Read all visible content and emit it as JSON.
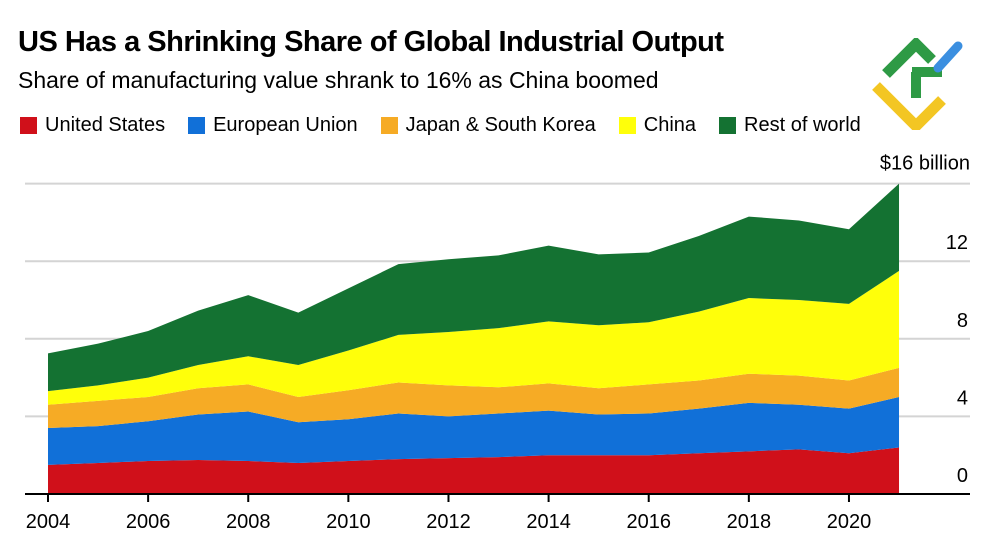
{
  "chart_data": {
    "type": "area",
    "stacked": true,
    "title": "US Has a Shrinking Share of Global Industrial Output",
    "subtitle": "Share of manufacturing value shrank to 16% as China boomed",
    "unit_label": "$16 billion",
    "x": [
      2004,
      2005,
      2006,
      2007,
      2008,
      2009,
      2010,
      2011,
      2012,
      2013,
      2014,
      2015,
      2016,
      2017,
      2018,
      2019,
      2020,
      2021
    ],
    "x_ticks": [
      "2004",
      "2006",
      "2008",
      "2010",
      "2012",
      "2014",
      "2016",
      "2018",
      "2020"
    ],
    "y_ticks": [
      "0",
      "4",
      "8",
      "12"
    ],
    "ylim": [
      0,
      16
    ],
    "grid": true,
    "y_axis_side": "right",
    "legend_placement": "top",
    "series": [
      {
        "name": "United States",
        "color": "#d0101a",
        "values": [
          1.5,
          1.6,
          1.7,
          1.75,
          1.7,
          1.6,
          1.7,
          1.8,
          1.85,
          1.9,
          2.0,
          2.0,
          2.0,
          2.1,
          2.2,
          2.3,
          2.1,
          2.4
        ]
      },
      {
        "name": "European Union",
        "color": "#1170d8",
        "values": [
          1.9,
          1.9,
          2.05,
          2.35,
          2.55,
          2.1,
          2.15,
          2.35,
          2.15,
          2.25,
          2.3,
          2.1,
          2.15,
          2.3,
          2.5,
          2.3,
          2.3,
          2.6
        ]
      },
      {
        "name": "Japan & South Korea",
        "color": "#f6ab25",
        "values": [
          1.2,
          1.3,
          1.25,
          1.35,
          1.4,
          1.3,
          1.5,
          1.6,
          1.6,
          1.35,
          1.4,
          1.35,
          1.5,
          1.45,
          1.5,
          1.5,
          1.45,
          1.5
        ]
      },
      {
        "name": "China",
        "color": "#ffff0a",
        "values": [
          0.7,
          0.8,
          1.0,
          1.2,
          1.45,
          1.65,
          2.05,
          2.45,
          2.75,
          3.05,
          3.2,
          3.25,
          3.2,
          3.55,
          3.9,
          3.9,
          3.95,
          5.0
        ]
      },
      {
        "name": "Rest of world",
        "color": "#147232",
        "values": [
          1.95,
          2.15,
          2.4,
          2.8,
          3.15,
          2.7,
          3.2,
          3.65,
          3.75,
          3.75,
          3.9,
          3.65,
          3.6,
          3.9,
          4.2,
          4.1,
          3.85,
          4.5
        ]
      }
    ]
  }
}
